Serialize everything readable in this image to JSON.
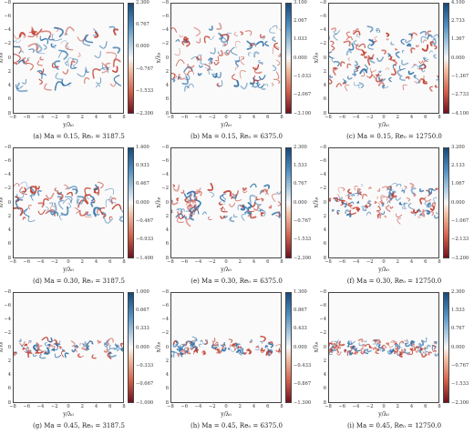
{
  "axes": {
    "xlabel": "y/λ₀",
    "ylabel": "x/λ₀",
    "x_ticks": [
      "−8",
      "−6",
      "−4",
      "−2",
      "0",
      "2",
      "4",
      "6",
      "8"
    ],
    "y_ticks": [
      "−8",
      "−6",
      "−4",
      "−2",
      "0",
      "2",
      "4",
      "6",
      "8"
    ]
  },
  "panels": [
    {
      "caption": "(a)  Ma = 0.15, Re₀ = 3187.5",
      "colorbar": [
        "2.300",
        "0.767",
        "0.000",
        "−0.767",
        "−1.533",
        "−2.300"
      ],
      "band_half_width": 4.2,
      "density": 90,
      "scale": 1.0
    },
    {
      "caption": "(b)  Ma = 0.15, Re₀ = 6375.0",
      "colorbar": [
        "3.100",
        "2.067",
        "1.033",
        "0.000",
        "−1.033",
        "−2.067",
        "−3.100"
      ],
      "band_half_width": 4.4,
      "density": 110,
      "scale": 0.8
    },
    {
      "caption": "(c)  Ma = 0.15, Re₀ = 12750.0",
      "colorbar": [
        "4.100",
        "2.733",
        "1.367",
        "0.000",
        "−1.367",
        "−2.733",
        "−4.100"
      ],
      "band_half_width": 4.4,
      "density": 140,
      "scale": 0.6
    },
    {
      "caption": "(d)  Ma = 0.30, Re₀ = 3187.5",
      "colorbar": [
        "1.400",
        "0.933",
        "0.467",
        "0.000",
        "−0.467",
        "−0.933",
        "−1.400"
      ],
      "band_half_width": 2.5,
      "density": 80,
      "scale": 0.9
    },
    {
      "caption": "(e)  Ma = 0.30, Re₀ = 6375.0",
      "colorbar": [
        "2.300",
        "1.533",
        "0.767",
        "0.000",
        "−0.767",
        "−1.533",
        "−2.300"
      ],
      "band_half_width": 2.4,
      "density": 100,
      "scale": 0.7
    },
    {
      "caption": "(f)  Ma = 0.30, Re₀ = 12750.0",
      "colorbar": [
        "3.200",
        "2.133",
        "1.067",
        "0.000",
        "−1.067",
        "−2.133",
        "−3.200"
      ],
      "band_half_width": 2.5,
      "density": 120,
      "scale": 0.55
    },
    {
      "caption": "(g)  Ma = 0.45, Re₀ = 3187.5",
      "colorbar": [
        "1.000",
        "0.667",
        "0.333",
        "0.000",
        "−0.333",
        "−0.667",
        "−1.000"
      ],
      "band_half_width": 1.1,
      "density": 80,
      "scale": 0.6
    },
    {
      "caption": "(h)  Ma = 0.45, Re₀ = 6375.0",
      "colorbar": [
        "1.300",
        "0.867",
        "0.433",
        "0.000",
        "−0.433",
        "−0.867",
        "−1.300"
      ],
      "band_half_width": 1.0,
      "density": 100,
      "scale": 0.5
    },
    {
      "caption": "(i)  Ma = 0.45, Re₀ = 12750.0",
      "colorbar": [
        "2.300",
        "1.533",
        "0.767",
        "0.000",
        "−0.767",
        "−1.533",
        "−2.300"
      ],
      "band_half_width": 1.0,
      "density": 120,
      "scale": 0.45
    }
  ],
  "colors": {
    "positive": "#2c6fa8",
    "negative": "#c0392b",
    "background": "#fafafa"
  }
}
